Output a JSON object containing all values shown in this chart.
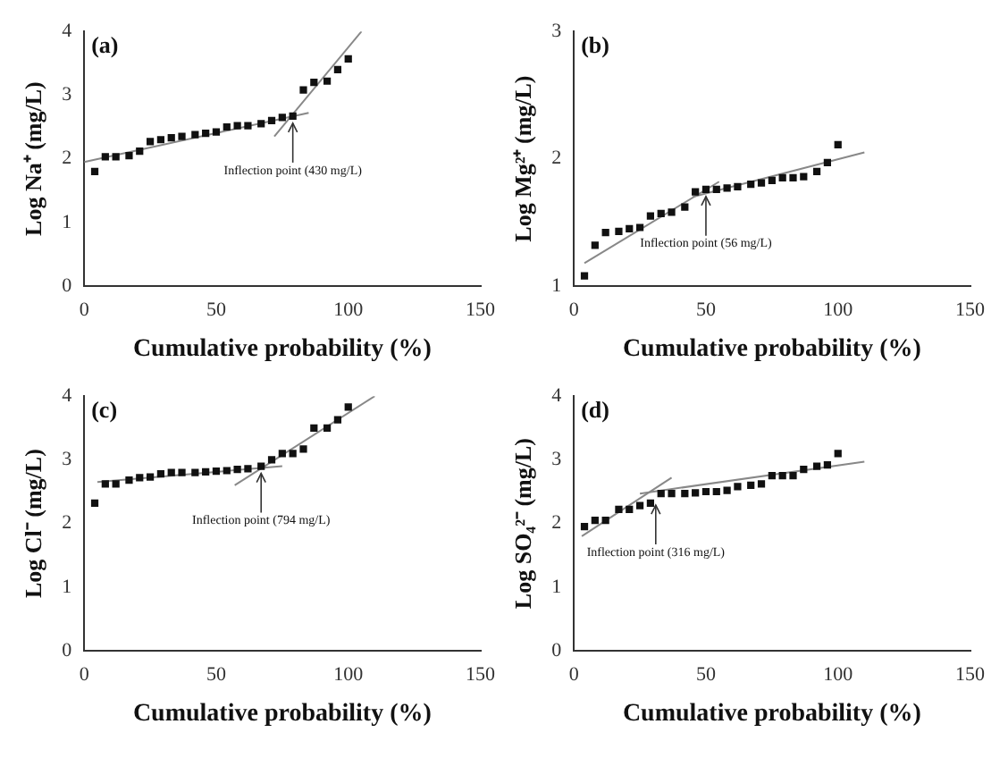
{
  "chart_data": [
    {
      "type": "scatter",
      "title": "(a)",
      "xlabel": "Cumulative probability (%)",
      "ylabel": "Log Na⁺ (mg/L)",
      "xlim": [
        0,
        150
      ],
      "xticks": [
        0,
        50,
        100,
        150
      ],
      "ylim": [
        0,
        4
      ],
      "yticks": [
        0,
        1,
        2,
        3,
        4
      ],
      "grid": false,
      "marker": "square",
      "x": [
        4,
        8,
        12,
        17,
        21,
        25,
        29,
        33,
        37,
        42,
        46,
        50,
        54,
        58,
        62,
        67,
        71,
        75,
        79,
        83,
        87,
        92,
        96,
        100
      ],
      "series": [
        {
          "color": "#111111",
          "values": [
            1.8,
            2.03,
            2.03,
            2.05,
            2.12,
            2.27,
            2.3,
            2.33,
            2.35,
            2.38,
            2.4,
            2.42,
            2.5,
            2.52,
            2.52,
            2.55,
            2.6,
            2.65,
            2.67,
            3.08,
            3.2,
            3.22,
            3.4,
            3.57
          ]
        },
        {
          "type": "line",
          "marker": "none",
          "color": "#888888",
          "x": [
            0,
            85
          ],
          "values": [
            1.95,
            2.72
          ]
        },
        {
          "type": "line",
          "marker": "none",
          "color": "#888888",
          "x": [
            72,
            105
          ],
          "values": [
            2.35,
            4.0
          ]
        }
      ],
      "annotations": [
        {
          "text": "Inflection point (430 mg/L)",
          "x": 79,
          "y": 2.67
        }
      ]
    },
    {
      "type": "scatter",
      "title": "(b)",
      "xlabel": "Cumulative probability (%)",
      "ylabel": "Log Mg²⁺ (mg/L)",
      "xlim": [
        0,
        150
      ],
      "xticks": [
        0,
        50,
        100,
        150
      ],
      "ylim": [
        1,
        3
      ],
      "yticks": [
        1,
        2,
        3
      ],
      "grid": false,
      "marker": "square",
      "x": [
        4,
        8,
        12,
        17,
        21,
        25,
        29,
        33,
        37,
        42,
        46,
        50,
        54,
        58,
        62,
        67,
        71,
        75,
        79,
        83,
        87,
        92,
        96,
        100
      ],
      "series": [
        {
          "color": "#111111",
          "values": [
            1.08,
            1.32,
            1.42,
            1.43,
            1.45,
            1.46,
            1.55,
            1.57,
            1.58,
            1.62,
            1.74,
            1.76,
            1.76,
            1.77,
            1.78,
            1.8,
            1.81,
            1.83,
            1.85,
            1.85,
            1.86,
            1.9,
            1.97,
            2.11
          ]
        },
        {
          "type": "line",
          "marker": "none",
          "color": "#888888",
          "x": [
            4,
            55
          ],
          "values": [
            1.18,
            1.82
          ]
        },
        {
          "type": "line",
          "marker": "none",
          "color": "#888888",
          "x": [
            45,
            110
          ],
          "values": [
            1.7,
            2.05
          ]
        }
      ],
      "annotations": [
        {
          "text": "Inflection point (56 mg/L)",
          "x": 50,
          "y": 1.76
        }
      ]
    },
    {
      "type": "scatter",
      "title": "(c)",
      "xlabel": "Cumulative probability (%)",
      "ylabel": "Log Cl⁻ (mg/L)",
      "xlim": [
        0,
        150
      ],
      "xticks": [
        0,
        50,
        100,
        150
      ],
      "ylim": [
        0,
        4
      ],
      "yticks": [
        0,
        1,
        2,
        3,
        4
      ],
      "grid": false,
      "marker": "square",
      "x": [
        4,
        8,
        12,
        17,
        21,
        25,
        29,
        33,
        37,
        42,
        46,
        50,
        54,
        58,
        62,
        67,
        71,
        75,
        79,
        83,
        87,
        92,
        96,
        100
      ],
      "series": [
        {
          "color": "#111111",
          "values": [
            2.32,
            2.62,
            2.62,
            2.68,
            2.72,
            2.73,
            2.78,
            2.8,
            2.8,
            2.8,
            2.81,
            2.82,
            2.83,
            2.85,
            2.86,
            2.9,
            3.0,
            3.1,
            3.1,
            3.17,
            3.5,
            3.5,
            3.63,
            3.83
          ]
        },
        {
          "type": "line",
          "marker": "none",
          "color": "#888888",
          "x": [
            5,
            75
          ],
          "values": [
            2.65,
            2.9
          ]
        },
        {
          "type": "line",
          "marker": "none",
          "color": "#888888",
          "x": [
            57,
            110
          ],
          "values": [
            2.6,
            4.0
          ]
        }
      ],
      "annotations": [
        {
          "text": "Inflection point (794 mg/L)",
          "x": 67,
          "y": 2.9
        }
      ]
    },
    {
      "type": "scatter",
      "title": "(d)",
      "xlabel": "Cumulative probability (%)",
      "ylabel": "Log SO₄²⁻ (mg/L)",
      "xlim": [
        0,
        150
      ],
      "xticks": [
        0,
        50,
        100,
        150
      ],
      "ylim": [
        0,
        4
      ],
      "yticks": [
        0,
        1,
        2,
        3,
        4
      ],
      "grid": false,
      "marker": "square",
      "x": [
        4,
        8,
        12,
        17,
        21,
        25,
        29,
        33,
        37,
        42,
        46,
        50,
        54,
        58,
        62,
        67,
        71,
        75,
        79,
        83,
        87,
        92,
        96,
        100
      ],
      "series": [
        {
          "color": "#111111",
          "values": [
            1.95,
            2.05,
            2.05,
            2.22,
            2.22,
            2.28,
            2.32,
            2.47,
            2.47,
            2.47,
            2.48,
            2.5,
            2.5,
            2.52,
            2.58,
            2.6,
            2.62,
            2.75,
            2.75,
            2.75,
            2.85,
            2.9,
            2.92,
            3.1
          ]
        },
        {
          "type": "line",
          "marker": "none",
          "color": "#888888",
          "x": [
            3,
            37
          ],
          "values": [
            1.8,
            2.72
          ]
        },
        {
          "type": "line",
          "marker": "none",
          "color": "#888888",
          "x": [
            25,
            110
          ],
          "values": [
            2.47,
            2.97
          ]
        }
      ],
      "annotations": [
        {
          "text": "Inflection point (316 mg/L)",
          "x": 31,
          "y": 2.4
        }
      ]
    }
  ]
}
